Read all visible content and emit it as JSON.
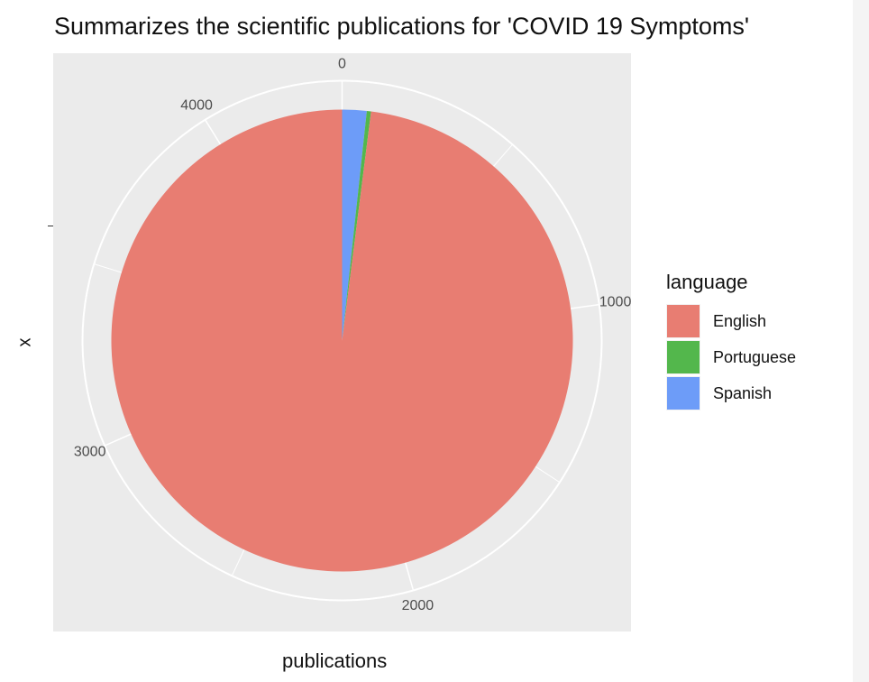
{
  "chart_data": {
    "type": "pie",
    "title": "Summarizes the scientific publications for 'COVID 19 Symptoms'",
    "xlabel": "publications",
    "ylabel": "x",
    "legend_title": "language",
    "legend_position": "right",
    "categories": [
      "English",
      "Portuguese",
      "Spanish"
    ],
    "values": [
      4300,
      13,
      75
    ],
    "colors": [
      "#E87D72",
      "#53B74C",
      "#6D9CF8"
    ],
    "stack_order": [
      "Spanish",
      "Portuguese",
      "English"
    ],
    "radial_ticks": [
      {
        "value": 0,
        "label": "0"
      },
      {
        "value": 1000,
        "label": "1000"
      },
      {
        "value": 2000,
        "label": "2000"
      },
      {
        "value": 3000,
        "label": "3000"
      },
      {
        "value": 4000,
        "label": "4000"
      }
    ],
    "y_tick_label": "",
    "grid": true
  }
}
